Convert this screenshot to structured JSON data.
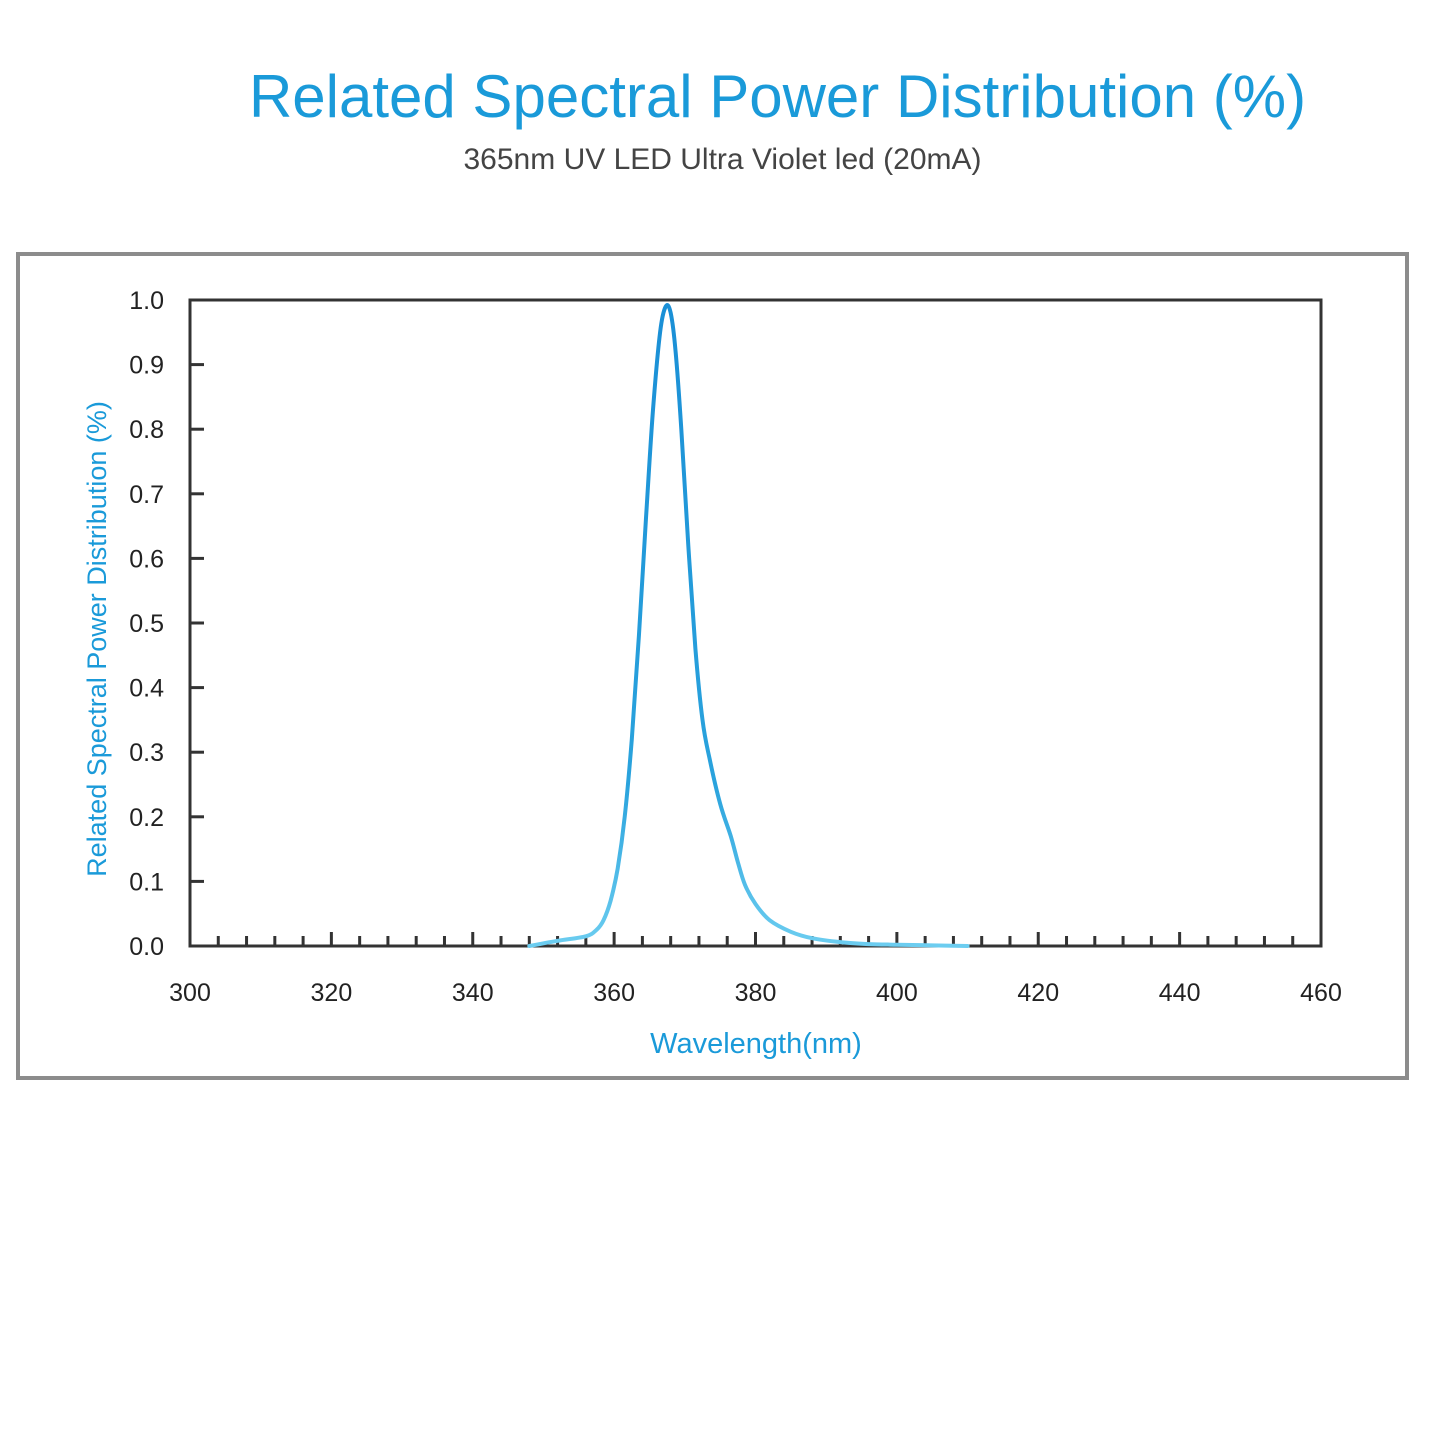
{
  "title": "Related Spectral Power Distribution (%)",
  "subtitle": "365nm UV LED Ultra Violet led (20mA)",
  "colors": {
    "accent": "#1a9ad9",
    "curve_top": "#1a8fd6",
    "curve_base": "#5cc6ee",
    "axis": "#333333",
    "frame": "#8c8c8c",
    "text": "#222222"
  },
  "chart_data": {
    "type": "line",
    "title": "Related Spectral Power Distribution (%)",
    "subtitle": "365nm UV LED Ultra Violet led (20mA)",
    "xlabel": "Wavelength(nm)",
    "ylabel": "Related Spectral Power Distribution (%)",
    "xlim": [
      300,
      460
    ],
    "ylim": [
      0,
      1.0
    ],
    "x_ticks": [
      "300",
      "320",
      "340",
      "360",
      "380",
      "400",
      "420",
      "440",
      "460"
    ],
    "y_ticks": [
      "0.0",
      "0.1",
      "0.2",
      "0.3",
      "0.4",
      "0.5",
      "0.6",
      "0.7",
      "0.8",
      "0.9",
      "1.0"
    ],
    "grid": false,
    "legend": "none",
    "series": [
      {
        "x": [
          348,
          352,
          356,
          357.5,
          358.5,
          359.5,
          360.5,
          361.5,
          362.5,
          363.5,
          364.5,
          365.5,
          366.5,
          367.3,
          368,
          368.7,
          369.5,
          370.5,
          371.5,
          372.5,
          373.5,
          375,
          376.5,
          377.5,
          378.5,
          380,
          382,
          385,
          388,
          392,
          396,
          400,
          405,
          410
        ],
        "y": [
          0.0,
          0.008,
          0.015,
          0.025,
          0.04,
          0.07,
          0.12,
          0.2,
          0.32,
          0.48,
          0.66,
          0.83,
          0.95,
          0.99,
          0.98,
          0.92,
          0.8,
          0.62,
          0.46,
          0.35,
          0.29,
          0.22,
          0.17,
          0.13,
          0.095,
          0.065,
          0.04,
          0.022,
          0.012,
          0.006,
          0.003,
          0.002,
          0.001,
          0.0
        ]
      }
    ]
  }
}
